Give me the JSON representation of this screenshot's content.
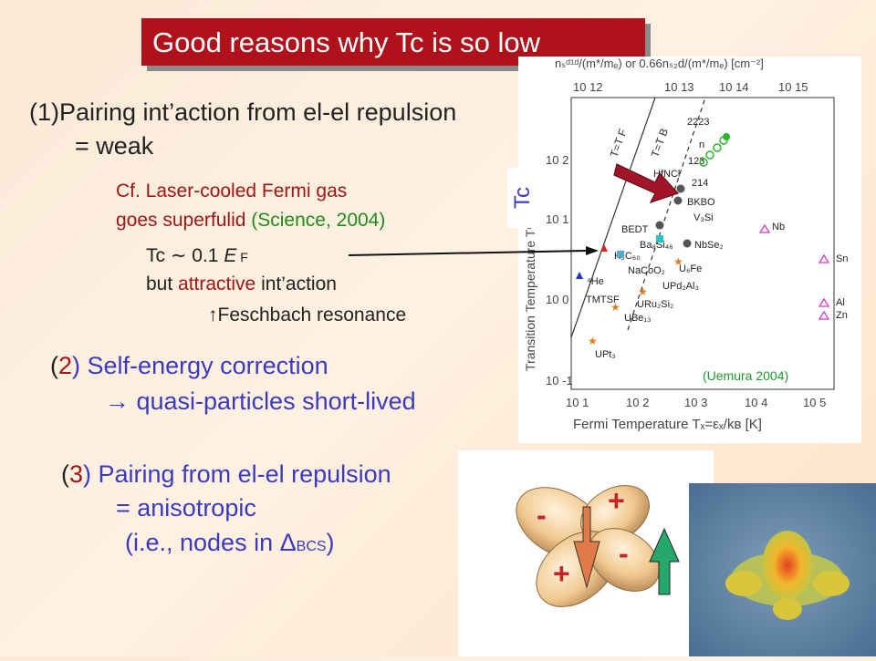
{
  "title": "Good reasons why Tc is so low",
  "point1": {
    "num": "(1)",
    "text_a": "Pairing int",
    "apos": "’",
    "text_b": "action from el-el repulsion",
    "line2": "= weak"
  },
  "cf": {
    "line1": "Cf. Laser-cooled Fermi gas",
    "line2_a": "goes superfulid ",
    "line2_b": "(Science, 2004)"
  },
  "tc_note": {
    "tc": "Tc",
    "sim": "∼",
    "val": " 0.1 ",
    "E": "E",
    "F": " F",
    "but": "but ",
    "attractive": "attractive",
    "int": " int",
    "apos": "’",
    "action": "action",
    "arrow": "↑",
    "resonance": "Feschbach resonance"
  },
  "point2": {
    "open": "(",
    "num": "2",
    "close": ") ",
    "text": "Self-energy correction",
    "arrow": "→",
    "line2": " quasi-particles short-lived"
  },
  "point3": {
    "open": "(",
    "num": "3",
    "close": ") ",
    "text": "Pairing from el-el repulsion",
    "line2": "= anisotropic",
    "line3_a": "(i.e., nodes in ",
    "delta": "Δ",
    "bcs": "BCS",
    "line3_b": ")"
  },
  "plot": {
    "top_axis_label": "nₛᵈ¹ᵈ/(m*/mₑ) or 0.66nₛ₂d/(m*/mₑ) [cm⁻²]",
    "top_ticks": [
      "10 12",
      "10 13",
      "10 14",
      "10 15"
    ],
    "left_ticks": [
      "10 2",
      "10 1",
      "10 0",
      "10 -1"
    ],
    "bottom_ticks": [
      "10 1",
      "10 2",
      "10 3",
      "10 4",
      "10 5"
    ],
    "xlabel": "Fermi Temperature  Tₓ=εₓ/kʙ [K]",
    "ylabel": "Transition Temperature Tᶜ [K]",
    "tf_line": "T=T F",
    "tb_line": "T=T B",
    "tc_tag": "Tc",
    "credit": "(Uemura 2004)",
    "materials": [
      "2223",
      "n",
      "123",
      "214",
      "HfNCl",
      "BKBO",
      "V₃Si",
      "Nb",
      "BEDT",
      "Ba₈Si₄₆",
      "NbSe₂",
      "⁴He",
      "K₃C₆₀",
      "NaCoO₂",
      "U₆Fe",
      "UPd₂Al₃",
      "TMTSF",
      "URu₂Si₂",
      "UBe₁₃",
      "UPt₃",
      "Sn",
      "Al",
      "Zn"
    ]
  },
  "pdf": {
    "plus1": "+",
    "minus1": "-",
    "plus2": "+",
    "minus2": "-"
  }
}
